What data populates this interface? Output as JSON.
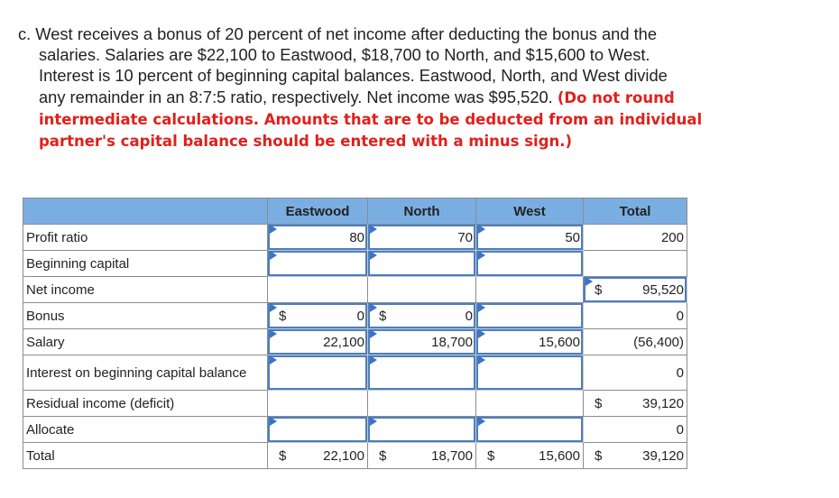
{
  "question": {
    "lines": [
      "c. West receives a bonus of 20 percent of net income after deducting the bonus and the",
      "salaries. Salaries are $22,100 to Eastwood, $18,700 to North, and $15,600 to West.",
      "Interest is 10 percent of beginning capital balances. Eastwood, North, and West divide",
      "any remainder in an 8:7:5 ratio, respectively. Net income was $95,520."
    ],
    "instruction": "(Do not round intermediate calculations. Amounts that are to be deducted from an individual partner's capital balance should be entered with a minus sign.)"
  },
  "table": {
    "headers": [
      "",
      "Eastwood",
      "North",
      "West",
      "Total"
    ],
    "rows": [
      {
        "label": "Profit ratio",
        "cells": [
          {
            "v": "80",
            "input": true
          },
          {
            "v": "70",
            "input": true
          },
          {
            "v": "50",
            "input": true
          },
          {
            "v": "200"
          }
        ]
      },
      {
        "label": "Beginning capital",
        "cells": [
          {
            "v": "",
            "input": true
          },
          {
            "v": "",
            "input": true
          },
          {
            "v": "",
            "input": true
          },
          {
            "v": ""
          }
        ]
      },
      {
        "label": "Net income",
        "cells": [
          {
            "v": ""
          },
          {
            "v": ""
          },
          {
            "v": ""
          },
          {
            "v": "95,520",
            "d": "$",
            "input": true
          }
        ]
      },
      {
        "label": "Bonus",
        "cells": [
          {
            "v": "0",
            "d": "$",
            "input": true
          },
          {
            "v": "0",
            "d": "$",
            "input": true
          },
          {
            "v": "",
            "input": true
          },
          {
            "v": "0"
          }
        ]
      },
      {
        "label": "Salary",
        "cells": [
          {
            "v": "22,100",
            "input": true
          },
          {
            "v": "18,700",
            "input": true
          },
          {
            "v": "15,600",
            "input": true
          },
          {
            "v": "(56,400)"
          }
        ]
      },
      {
        "label": "Interest on beginning capital balance",
        "cells": [
          {
            "v": "",
            "input": true
          },
          {
            "v": "",
            "input": true
          },
          {
            "v": "",
            "input": true
          },
          {
            "v": "0"
          }
        ]
      },
      {
        "label": "Residual income (deficit)",
        "cells": [
          {
            "v": ""
          },
          {
            "v": ""
          },
          {
            "v": ""
          },
          {
            "v": "39,120",
            "d": "$"
          }
        ]
      },
      {
        "label": "Allocate",
        "cells": [
          {
            "v": "",
            "input": true
          },
          {
            "v": "",
            "input": true
          },
          {
            "v": "",
            "input": true
          },
          {
            "v": "0"
          }
        ]
      },
      {
        "label": "Total",
        "cells": [
          {
            "v": "22,100",
            "d": "$"
          },
          {
            "v": "18,700",
            "d": "$"
          },
          {
            "v": "15,600",
            "d": "$"
          },
          {
            "v": "39,120",
            "d": "$"
          }
        ]
      }
    ]
  }
}
